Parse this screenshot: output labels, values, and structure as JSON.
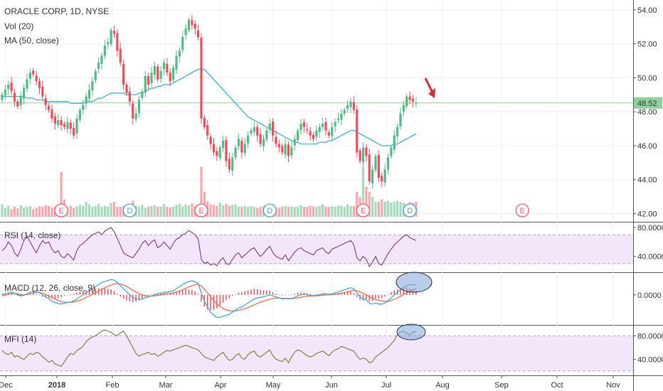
{
  "colors": {
    "up": "#53b987",
    "down": "#eb4d5c",
    "ma": "#4fb3cf",
    "rsi_line": "#7b3a7a",
    "band_fill": "#f3e6fb",
    "macd_line": "#3fa9d6",
    "signal_line": "#f26d4f",
    "hist": "#e8434f",
    "mfi_line": "#6f7c3a",
    "price_hline": "#8fd19e",
    "arrow": "#d6293d",
    "ellipse_fill": "#7ea6d8",
    "volume_up": "#a7d9bd",
    "volume_down": "#f5a8ae"
  },
  "legend": {
    "title": "ORACLE CORP, 1D, NYSE",
    "vol": "Vol (20)",
    "ma": "MA (50, close)",
    "rsi": "RSI (14, close)",
    "macd": "MACD (12, 26, close, 9)",
    "mfi": "MFI (14)"
  },
  "price_tag": "48.52",
  "chart_data": [
    {
      "type": "candlestick",
      "title": "ORACLE CORP, 1D, NYSE",
      "y_ticks": [
        "54.00",
        "52.00",
        "50.00",
        "48.00",
        "46.00",
        "44.00",
        "42.00"
      ],
      "ylim": [
        41.6,
        54.5
      ],
      "last_price": 48.52,
      "x_labels": [
        "Dec",
        "2018",
        "Feb",
        "Mar",
        "Apr",
        "May",
        "Jun",
        "Jul",
        "Aug",
        "Sep",
        "Oct",
        "Nov"
      ],
      "closes": [
        49.0,
        49.3,
        49.6,
        49.2,
        48.6,
        48.3,
        48.9,
        49.4,
        49.9,
        50.3,
        50.2,
        49.8,
        49.4,
        48.9,
        48.4,
        48.1,
        47.6,
        47.3,
        47.5,
        47.2,
        47.1,
        47.4,
        47.0,
        46.6,
        47.6,
        48.1,
        48.4,
        48.9,
        49.3,
        49.8,
        50.4,
        50.9,
        51.3,
        51.9,
        52.1,
        52.8,
        52.6,
        51.6,
        50.9,
        49.6,
        49.1,
        48.6,
        47.6,
        47.9,
        48.7,
        49.2,
        50.1,
        49.6,
        50.3,
        50.7,
        49.9,
        50.4,
        50.9,
        50.3,
        49.8,
        50.6,
        51.3,
        51.6,
        52.4,
        52.9,
        53.4,
        53.1,
        52.9,
        52.4,
        47.6,
        47.1,
        46.6,
        46.1,
        45.6,
        45.4,
        45.9,
        46.3,
        45.1,
        44.6,
        45.3,
        45.9,
        46.4,
        45.6,
        46.1,
        46.6,
        46.9,
        47.1,
        46.6,
        46.1,
        46.4,
        46.9,
        47.3,
        46.6,
        46.1,
        45.9,
        45.6,
        46.1,
        45.4,
        45.9,
        46.4,
        46.9,
        47.3,
        47.1,
        46.9,
        46.6,
        46.4,
        46.9,
        47.1,
        47.3,
        46.9,
        46.6,
        47.1,
        47.4,
        47.6,
        47.9,
        48.1,
        48.4,
        48.6,
        48.1,
        45.6,
        45.1,
        45.9,
        45.4,
        43.9,
        44.6,
        45.4,
        44.1,
        43.9,
        44.6,
        45.3,
        45.9,
        46.6,
        47.1,
        47.9,
        48.4,
        48.9,
        48.7,
        48.6,
        48.52
      ],
      "ma_values": [
        48.9,
        48.9,
        48.9,
        48.9,
        48.9,
        48.9,
        48.9,
        48.9,
        48.8,
        48.8,
        48.8,
        48.7,
        48.7,
        48.7,
        48.6,
        48.6,
        48.6,
        48.6,
        48.6,
        48.6,
        48.6,
        48.6,
        48.5,
        48.5,
        48.5,
        48.5,
        48.5,
        48.6,
        48.6,
        48.6,
        48.7,
        48.8,
        48.8,
        48.9,
        49.0,
        49.1,
        49.1,
        49.1,
        49.1,
        49.1,
        49.0,
        49.0,
        49.0,
        49.0,
        49.1,
        49.1,
        49.2,
        49.3,
        49.4,
        49.4,
        49.5,
        49.5,
        49.6,
        49.6,
        49.6,
        49.7,
        49.8,
        49.9,
        50.0,
        50.1,
        50.2,
        50.3,
        50.4,
        50.5,
        50.5,
        50.5,
        50.3,
        50.1,
        49.9,
        49.7,
        49.5,
        49.3,
        49.1,
        48.9,
        48.7,
        48.5,
        48.3,
        48.1,
        47.9,
        47.7,
        47.6,
        47.5,
        47.4,
        47.3,
        47.2,
        47.1,
        47.0,
        46.9,
        46.8,
        46.7,
        46.6,
        46.5,
        46.4,
        46.3,
        46.2,
        46.2,
        46.1,
        46.1,
        46.1,
        46.1,
        46.1,
        46.1,
        46.2,
        46.2,
        46.2,
        46.3,
        46.3,
        46.4,
        46.5,
        46.6,
        46.7,
        46.8,
        46.9,
        46.9,
        46.8,
        46.7,
        46.6,
        46.5,
        46.4,
        46.3,
        46.2,
        46.1,
        46.0,
        46.0,
        46.0,
        46.0,
        46.1,
        46.1,
        46.2,
        46.3,
        46.4,
        46.5,
        46.6,
        46.7
      ],
      "volume": [
        0.25,
        0.18,
        0.22,
        0.15,
        0.2,
        0.17,
        0.23,
        0.19,
        0.2,
        0.22,
        0.16,
        0.18,
        0.21,
        0.2,
        0.23,
        0.22,
        0.19,
        0.2,
        0.25,
        0.9,
        0.35,
        0.2,
        0.22,
        0.18,
        0.21,
        0.24,
        0.22,
        0.3,
        0.25,
        0.2,
        0.22,
        0.26,
        0.2,
        0.22,
        0.21,
        0.27,
        0.3,
        0.2,
        0.2,
        0.22,
        0.24,
        0.2,
        0.32,
        0.22,
        0.2,
        0.24,
        0.18,
        0.2,
        0.22,
        0.23,
        0.2,
        0.21,
        0.26,
        0.2,
        0.19,
        0.2,
        0.24,
        0.26,
        0.21,
        0.25,
        0.23,
        0.27,
        0.22,
        0.24,
        1.0,
        0.5,
        0.3,
        0.25,
        0.24,
        0.22,
        0.28,
        0.23,
        0.26,
        0.22,
        0.24,
        0.25,
        0.2,
        0.2,
        0.22,
        0.2,
        0.22,
        0.2,
        0.18,
        0.2,
        0.22,
        0.2,
        0.24,
        0.2,
        0.18,
        0.18,
        0.2,
        0.22,
        0.2,
        0.21,
        0.2,
        0.2,
        0.23,
        0.2,
        0.2,
        0.22,
        0.21,
        0.2,
        0.22,
        0.25,
        0.2,
        0.2,
        0.21,
        0.2,
        0.23,
        0.22,
        0.2,
        0.25,
        0.22,
        0.22,
        0.5,
        0.4,
        1.0,
        0.6,
        0.5,
        0.4,
        0.3,
        0.3,
        0.35,
        0.3,
        0.32,
        0.28,
        0.3,
        0.32,
        0.3,
        0.28,
        0.26,
        0.3,
        0.28,
        0.3
      ],
      "event_markers": [
        {
          "label": "E",
          "x_index": 19
        },
        {
          "label": "D",
          "x_index": 41
        },
        {
          "label": "E",
          "x_index": 64
        },
        {
          "label": "D",
          "x_index": 86
        },
        {
          "label": "E",
          "x_index": 116
        },
        {
          "label": "D",
          "x_index": 131
        },
        {
          "label": "E",
          "x_index": 166
        }
      ]
    },
    {
      "type": "line",
      "title": "RSI (14, close)",
      "y_ticks": [
        "80.0000",
        "40.0000"
      ],
      "ylim": [
        20,
        85
      ],
      "band": [
        30,
        70
      ],
      "values": [
        48,
        52,
        60,
        55,
        45,
        40,
        50,
        62,
        68,
        60,
        52,
        45,
        55,
        62,
        58,
        60,
        50,
        45,
        48,
        40,
        38,
        44,
        40,
        35,
        48,
        55,
        58,
        62,
        66,
        70,
        72,
        74,
        70,
        75,
        78,
        80,
        74,
        65,
        55,
        45,
        42,
        40,
        38,
        44,
        50,
        58,
        62,
        55,
        60,
        63,
        52,
        55,
        60,
        55,
        50,
        58,
        64,
        66,
        70,
        72,
        76,
        73,
        70,
        64,
        36,
        30,
        32,
        28,
        30,
        27,
        34,
        38,
        30,
        29,
        36,
        42,
        45,
        38,
        42,
        46,
        50,
        52,
        45,
        40,
        44,
        50,
        54,
        45,
        40,
        38,
        36,
        42,
        34,
        40,
        46,
        50,
        52,
        48,
        46,
        44,
        42,
        48,
        50,
        52,
        46,
        44,
        50,
        52,
        54,
        56,
        58,
        60,
        62,
        56,
        38,
        34,
        40,
        36,
        26,
        32,
        40,
        30,
        28,
        36,
        44,
        50,
        56,
        60,
        64,
        68,
        70,
        66,
        64,
        62
      ]
    },
    {
      "type": "line",
      "title": "MACD (12, 26, close, 9)",
      "y_ticks": [
        "0.0000"
      ],
      "ylim": [
        -1.4,
        1.0
      ],
      "macd": [
        0.0,
        0.05,
        0.1,
        0.12,
        0.08,
        0.0,
        -0.05,
        -0.02,
        0.05,
        0.12,
        0.18,
        0.15,
        0.1,
        0.0,
        -0.1,
        -0.2,
        -0.3,
        -0.38,
        -0.42,
        -0.45,
        -0.4,
        -0.38,
        -0.35,
        -0.3,
        -0.2,
        -0.1,
        0.0,
        0.1,
        0.2,
        0.3,
        0.4,
        0.5,
        0.6,
        0.65,
        0.7,
        0.75,
        0.72,
        0.6,
        0.45,
        0.3,
        0.15,
        0.0,
        -0.12,
        -0.2,
        -0.22,
        -0.2,
        -0.15,
        -0.1,
        -0.05,
        0.0,
        0.05,
        0.08,
        0.12,
        0.14,
        0.15,
        0.2,
        0.3,
        0.4,
        0.5,
        0.6,
        0.65,
        0.68,
        0.65,
        0.55,
        0.1,
        -0.3,
        -0.6,
        -0.85,
        -1.0,
        -1.1,
        -1.1,
        -1.05,
        -1.0,
        -0.95,
        -0.85,
        -0.75,
        -0.65,
        -0.6,
        -0.5,
        -0.4,
        -0.3,
        -0.2,
        -0.15,
        -0.12,
        -0.1,
        -0.05,
        0.0,
        -0.05,
        -0.1,
        -0.15,
        -0.2,
        -0.18,
        -0.2,
        -0.18,
        -0.12,
        -0.05,
        0.0,
        0.02,
        0.0,
        -0.02,
        -0.05,
        -0.02,
        0.0,
        0.05,
        0.05,
        0.02,
        0.05,
        0.1,
        0.15,
        0.2,
        0.25,
        0.3,
        0.35,
        0.3,
        0.1,
        -0.1,
        -0.2,
        -0.25,
        -0.4,
        -0.45,
        -0.4,
        -0.45,
        -0.45,
        -0.4,
        -0.3,
        -0.15,
        0.0,
        0.12,
        0.25,
        0.35,
        0.45,
        0.5,
        0.5,
        0.48
      ],
      "signal": [
        -0.05,
        -0.02,
        0.02,
        0.06,
        0.07,
        0.05,
        0.02,
        0.0,
        0.02,
        0.05,
        0.1,
        0.12,
        0.12,
        0.08,
        0.02,
        -0.05,
        -0.12,
        -0.2,
        -0.27,
        -0.33,
        -0.36,
        -0.37,
        -0.37,
        -0.35,
        -0.31,
        -0.26,
        -0.2,
        -0.13,
        -0.06,
        0.02,
        0.1,
        0.18,
        0.27,
        0.34,
        0.41,
        0.48,
        0.53,
        0.55,
        0.53,
        0.48,
        0.41,
        0.32,
        0.23,
        0.14,
        0.06,
        0.0,
        -0.04,
        -0.06,
        -0.06,
        -0.05,
        -0.03,
        -0.01,
        0.02,
        0.05,
        0.07,
        0.1,
        0.14,
        0.19,
        0.25,
        0.32,
        0.39,
        0.45,
        0.49,
        0.51,
        0.43,
        0.28,
        0.1,
        -0.09,
        -0.27,
        -0.44,
        -0.57,
        -0.67,
        -0.74,
        -0.78,
        -0.79,
        -0.78,
        -0.76,
        -0.72,
        -0.68,
        -0.62,
        -0.56,
        -0.49,
        -0.42,
        -0.36,
        -0.31,
        -0.26,
        -0.21,
        -0.18,
        -0.16,
        -0.16,
        -0.17,
        -0.17,
        -0.18,
        -0.18,
        -0.17,
        -0.15,
        -0.12,
        -0.09,
        -0.07,
        -0.06,
        -0.06,
        -0.05,
        -0.04,
        -0.02,
        -0.01,
        0.0,
        0.01,
        0.03,
        0.05,
        0.08,
        0.11,
        0.15,
        0.19,
        0.22,
        0.2,
        0.14,
        0.07,
        0.0,
        -0.1,
        -0.17,
        -0.22,
        -0.27,
        -0.3,
        -0.32,
        -0.32,
        -0.28,
        -0.22,
        -0.15,
        -0.07,
        0.01,
        0.1,
        0.18,
        0.24,
        0.29
      ]
    },
    {
      "type": "line",
      "title": "MFI (14)",
      "y_ticks": [
        "80.0000",
        "40.0000"
      ],
      "ylim": [
        15,
        95
      ],
      "band": [
        20,
        80
      ],
      "values": [
        55,
        50,
        48,
        52,
        44,
        46,
        42,
        40,
        45,
        50,
        48,
        52,
        50,
        44,
        40,
        35,
        38,
        32,
        30,
        28,
        36,
        44,
        50,
        48,
        55,
        58,
        62,
        70,
        75,
        78,
        80,
        84,
        88,
        90,
        88,
        86,
        82,
        80,
        85,
        88,
        80,
        70,
        60,
        50,
        45,
        48,
        50,
        52,
        48,
        50,
        45,
        48,
        52,
        55,
        54,
        56,
        58,
        60,
        62,
        64,
        62,
        60,
        58,
        56,
        50,
        44,
        42,
        40,
        38,
        44,
        48,
        52,
        44,
        38,
        40,
        46,
        50,
        42,
        40,
        48,
        52,
        54,
        46,
        44,
        48,
        52,
        56,
        46,
        40,
        38,
        36,
        42,
        34,
        44,
        52,
        56,
        54,
        50,
        46,
        44,
        46,
        50,
        52,
        54,
        50,
        46,
        52,
        56,
        58,
        62,
        60,
        58,
        56,
        54,
        46,
        40,
        42,
        40,
        34,
        36,
        44,
        48,
        52,
        56,
        60,
        66,
        72,
        82,
        86,
        88,
        84,
        82,
        86,
        88
      ]
    }
  ]
}
